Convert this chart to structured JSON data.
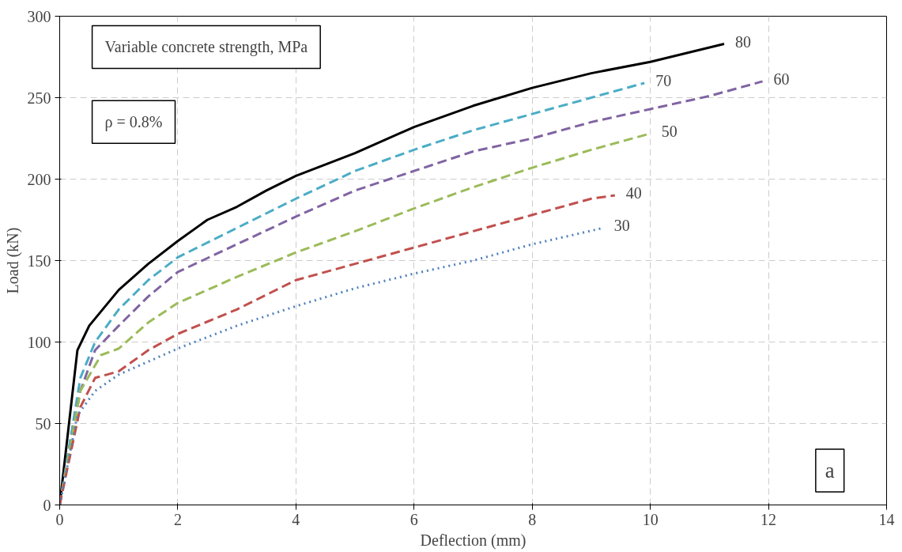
{
  "chart_data": {
    "type": "line",
    "xlabel": "Deflection (mm)",
    "ylabel": "Load (kN)",
    "xlim": [
      0,
      14
    ],
    "ylim": [
      0,
      300
    ],
    "xticks": [
      0,
      2,
      4,
      6,
      8,
      10,
      12,
      14
    ],
    "yticks": [
      0,
      50,
      100,
      150,
      200,
      250,
      300
    ],
    "grid": true,
    "marker": "none",
    "annotations": [
      "Variable concrete strength, MPa",
      "ρ = 0.8%",
      "a"
    ],
    "series": [
      {
        "name": "80",
        "color": "#000000",
        "line_style": "solid",
        "x": [
          0,
          0.3,
          0.5,
          1,
          1.5,
          2,
          2.5,
          3,
          3.5,
          4,
          5,
          6,
          7,
          8,
          9,
          10,
          11.25
        ],
        "values": [
          0,
          95,
          110,
          132,
          148,
          162,
          175,
          183,
          193,
          202,
          216,
          232,
          245,
          256,
          265,
          272,
          283
        ]
      },
      {
        "name": "70",
        "color": "#4bacc6",
        "line_style": "dashed",
        "x": [
          0,
          0.35,
          0.6,
          1,
          1.5,
          2,
          3,
          4,
          5,
          6,
          7,
          8,
          9,
          9.9
        ],
        "values": [
          0,
          78,
          100,
          120,
          138,
          152,
          170,
          188,
          205,
          218,
          230,
          240,
          250,
          259
        ]
      },
      {
        "name": "60",
        "color": "#8064a2",
        "line_style": "dashed",
        "x": [
          0,
          0.35,
          0.6,
          1,
          1.5,
          2,
          3,
          4,
          5,
          6,
          7,
          8,
          9,
          10,
          11,
          11.9
        ],
        "values": [
          0,
          70,
          95,
          110,
          128,
          143,
          160,
          177,
          193,
          205,
          217,
          225,
          235,
          243,
          251,
          260
        ]
      },
      {
        "name": "50",
        "color": "#9bbb59",
        "line_style": "dashed",
        "x": [
          0,
          0.35,
          0.7,
          1,
          1.5,
          2,
          3,
          4,
          5,
          6,
          7,
          8,
          9,
          10
        ],
        "values": [
          0,
          70,
          92,
          96,
          112,
          124,
          140,
          155,
          168,
          182,
          195,
          207,
          218,
          228
        ]
      },
      {
        "name": "40",
        "color": "#c0504d",
        "line_style": "dashed",
        "x": [
          0,
          0.35,
          0.6,
          1,
          1.5,
          2,
          3,
          4,
          5,
          6,
          7,
          8,
          9,
          9.4
        ],
        "values": [
          0,
          60,
          78,
          82,
          95,
          105,
          120,
          138,
          148,
          158,
          168,
          178,
          188,
          190
        ]
      },
      {
        "name": "30",
        "color": "#4f81bd",
        "line_style": "dotted",
        "x": [
          0,
          0.3,
          0.6,
          1,
          2,
          3,
          4,
          5,
          6,
          7,
          8,
          9.2
        ],
        "values": [
          0,
          55,
          70,
          80,
          96,
          110,
          122,
          133,
          142,
          150,
          160,
          170
        ]
      }
    ]
  }
}
